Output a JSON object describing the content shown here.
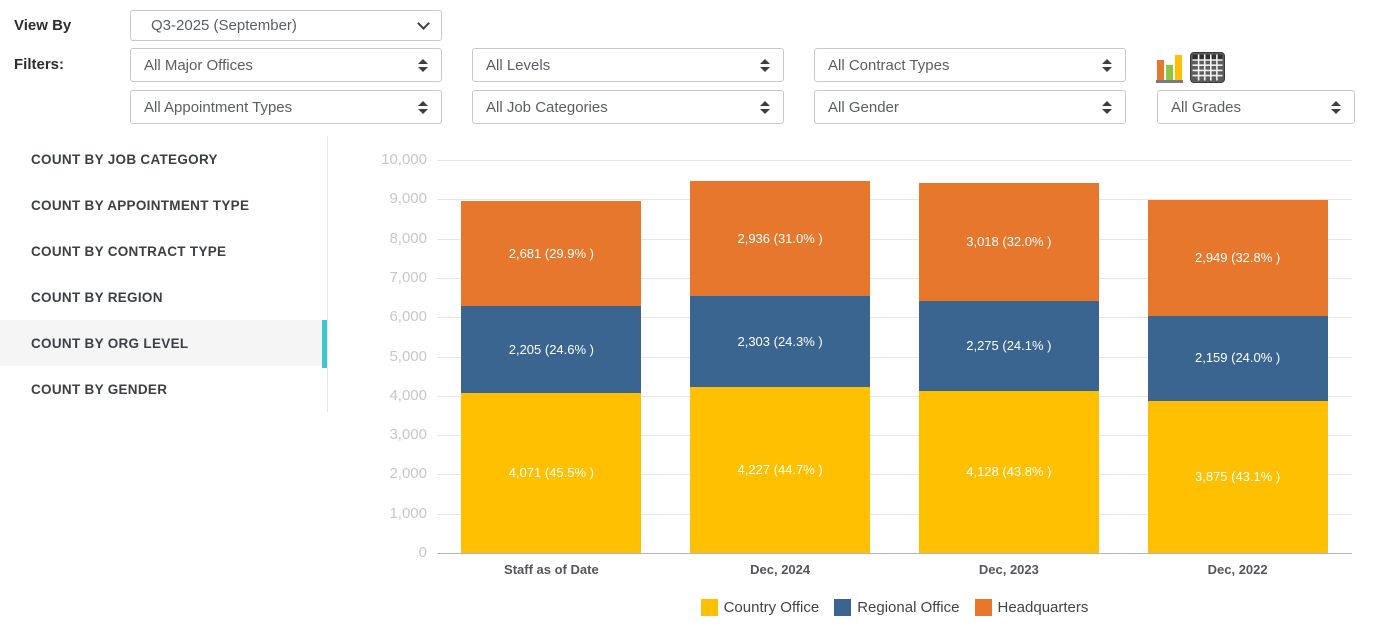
{
  "colors": {
    "accent_teal": "#3EC6D0",
    "country_office": "#FEC001",
    "regional_office": "#3A6590",
    "headquarters": "#E8772E"
  },
  "view_by": {
    "label": "View By",
    "selected": "Q3-2025 (September)"
  },
  "filters": {
    "label": "Filters:",
    "major_offices": "All Major Offices",
    "levels": "All Levels",
    "contract_types": "All Contract Types",
    "appointment_types": "All Appointment Types",
    "job_categories": "All Job Categories",
    "gender": "All Gender",
    "grades": "All Grades"
  },
  "toolbar": {
    "icons": [
      "bar-chart-view-icon",
      "table-view-icon"
    ]
  },
  "sidebar": {
    "items": [
      {
        "label": "COUNT BY JOB CATEGORY",
        "active": false
      },
      {
        "label": "COUNT BY APPOINTMENT TYPE",
        "active": false
      },
      {
        "label": "COUNT BY CONTRACT TYPE",
        "active": false
      },
      {
        "label": "COUNT BY REGION",
        "active": false
      },
      {
        "label": "COUNT BY ORG LEVEL",
        "active": true
      },
      {
        "label": "COUNT BY GENDER",
        "active": false
      }
    ]
  },
  "chart_data": {
    "type": "bar",
    "stacked": true,
    "grid": true,
    "legend_position": "bottom",
    "categories": [
      "Staff as of Date",
      "Dec, 2024",
      "Dec, 2023",
      "Dec, 2022"
    ],
    "series": [
      {
        "name": "Country Office",
        "color": "#FEC001",
        "values": [
          4071,
          4227,
          4128,
          3875
        ],
        "labels": [
          "4,071 (45.5% )",
          "4,227 (44.7% )",
          "4,128 (43.8% )",
          "3,875 (43.1% )"
        ]
      },
      {
        "name": "Regional Office",
        "color": "#3A6590",
        "values": [
          2205,
          2303,
          2275,
          2159
        ],
        "labels": [
          "2,205 (24.6% )",
          "2,303 (24.3% )",
          "2,275 (24.1% )",
          "2,159 (24.0% )"
        ]
      },
      {
        "name": "Headquarters",
        "color": "#E8772E",
        "values": [
          2681,
          2936,
          3018,
          2949
        ],
        "labels": [
          "2,681 (29.9% )",
          "2,936 (31.0% )",
          "3,018 (32.0% )",
          "2,949 (32.8% )"
        ]
      }
    ],
    "ylim": [
      0,
      10000
    ],
    "ytick_step": 1000,
    "totals": [
      8957,
      9466,
      9421,
      8983
    ]
  }
}
